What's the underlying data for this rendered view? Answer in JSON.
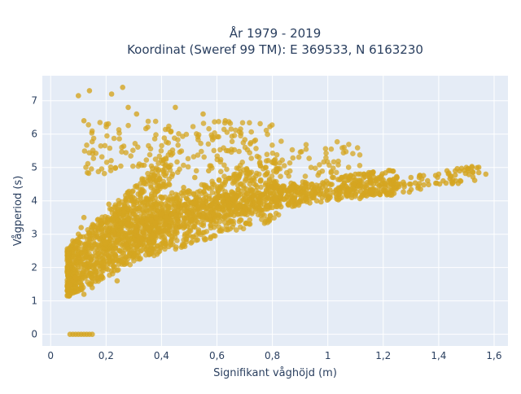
{
  "chart_data": {
    "type": "scatter",
    "title_lines": [
      "År 1979 - 2019",
      "Koordinat (Sweref 99 TM): E 369533, N 6163230"
    ],
    "xlabel": "Signifikant våghöjd (m)",
    "ylabel": "Vågperiod (s)",
    "xlim": [
      -0.03,
      1.65
    ],
    "ylim": [
      -0.35,
      7.75
    ],
    "x_ticks": [
      0,
      0.2,
      0.4,
      0.6,
      0.8,
      1,
      1.2,
      1.4,
      1.6
    ],
    "x_tick_labels": [
      "0",
      "0,2",
      "0,4",
      "0,6",
      "0,8",
      "1",
      "1,2",
      "1,4",
      "1,6"
    ],
    "y_ticks": [
      0,
      1,
      2,
      3,
      4,
      5,
      6,
      7
    ],
    "y_tick_labels": [
      "0",
      "1",
      "2",
      "3",
      "4",
      "5",
      "6",
      "7"
    ],
    "grid": true,
    "marker_color": "#D4A520",
    "background_color": "#E5ECF6",
    "series": [
      {
        "values": [
          [
            0.07,
            1.5
          ],
          [
            0.06,
            1.45
          ],
          [
            0.08,
            1.6
          ],
          [
            0.09,
            1.7
          ],
          [
            0.1,
            1.3
          ],
          [
            0.11,
            1.5
          ],
          [
            0.12,
            1.2
          ],
          [
            0.1,
            2.3
          ],
          [
            0.09,
            2.6
          ],
          [
            0.11,
            3.2
          ],
          [
            0.12,
            3.5
          ],
          [
            0.08,
            2.8
          ],
          [
            0.1,
            3.0
          ],
          [
            0.13,
            1.9
          ],
          [
            0.15,
            1.4
          ],
          [
            0.17,
            1.7
          ],
          [
            0.19,
            2.0
          ],
          [
            0.2,
            2.4
          ],
          [
            0.16,
            2.9
          ],
          [
            0.18,
            3.4
          ],
          [
            0.21,
            3.9
          ],
          [
            0.23,
            3.0
          ],
          [
            0.25,
            2.5
          ],
          [
            0.27,
            2.7
          ],
          [
            0.22,
            1.9
          ],
          [
            0.24,
            1.6
          ],
          [
            0.14,
            2.3
          ],
          [
            0.28,
            3.3
          ],
          [
            0.3,
            3.6
          ],
          [
            0.32,
            2.9
          ],
          [
            0.29,
            4.0
          ],
          [
            0.33,
            4.3
          ],
          [
            0.35,
            3.2
          ],
          [
            0.36,
            4.6
          ],
          [
            0.38,
            3.5
          ],
          [
            0.4,
            4.1
          ],
          [
            0.42,
            3.4
          ],
          [
            0.44,
            4.8
          ],
          [
            0.41,
            2.9
          ],
          [
            0.46,
            3.7
          ],
          [
            0.48,
            4.4
          ],
          [
            0.5,
            3.1
          ],
          [
            0.52,
            4.7
          ],
          [
            0.55,
            3.5
          ],
          [
            0.57,
            4.9
          ],
          [
            0.6,
            3.8
          ],
          [
            0.62,
            4.5
          ],
          [
            0.65,
            3.4
          ],
          [
            0.67,
            4.1
          ],
          [
            0.7,
            3.6
          ],
          [
            0.72,
            4.6
          ],
          [
            0.75,
            3.9
          ],
          [
            0.78,
            4.8
          ],
          [
            0.8,
            3.8
          ],
          [
            0.83,
            4.3
          ],
          [
            0.86,
            3.9
          ],
          [
            0.9,
            4.0
          ],
          [
            0.93,
            4.4
          ],
          [
            0.96,
            4.0
          ],
          [
            1.0,
            4.1
          ],
          [
            1.03,
            4.2
          ],
          [
            1.07,
            4.3
          ],
          [
            1.1,
            4.2
          ],
          [
            1.14,
            4.4
          ],
          [
            1.18,
            4.5
          ],
          [
            1.22,
            4.6
          ],
          [
            1.26,
            4.5
          ],
          [
            1.3,
            4.7
          ],
          [
            1.33,
            4.7
          ],
          [
            1.36,
            4.6
          ],
          [
            1.4,
            4.8
          ],
          [
            1.43,
            4.9
          ],
          [
            1.46,
            4.9
          ],
          [
            1.5,
            5.0
          ],
          [
            1.57,
            4.8
          ],
          [
            1.52,
            5.0
          ],
          [
            0.1,
            7.15
          ],
          [
            0.14,
            7.3
          ],
          [
            0.12,
            6.4
          ],
          [
            0.26,
            7.4
          ],
          [
            0.22,
            7.2
          ],
          [
            0.31,
            6.6
          ],
          [
            0.28,
            6.8
          ],
          [
            0.45,
            6.8
          ],
          [
            0.55,
            6.6
          ],
          [
            0.63,
            6.4
          ],
          [
            0.07,
            0
          ],
          [
            0.08,
            0
          ],
          [
            0.09,
            0
          ],
          [
            0.1,
            0
          ],
          [
            0.11,
            0
          ],
          [
            0.12,
            0
          ],
          [
            0.13,
            0
          ],
          [
            0.14,
            0
          ],
          [
            0.15,
            0
          ]
        ]
      }
    ]
  }
}
